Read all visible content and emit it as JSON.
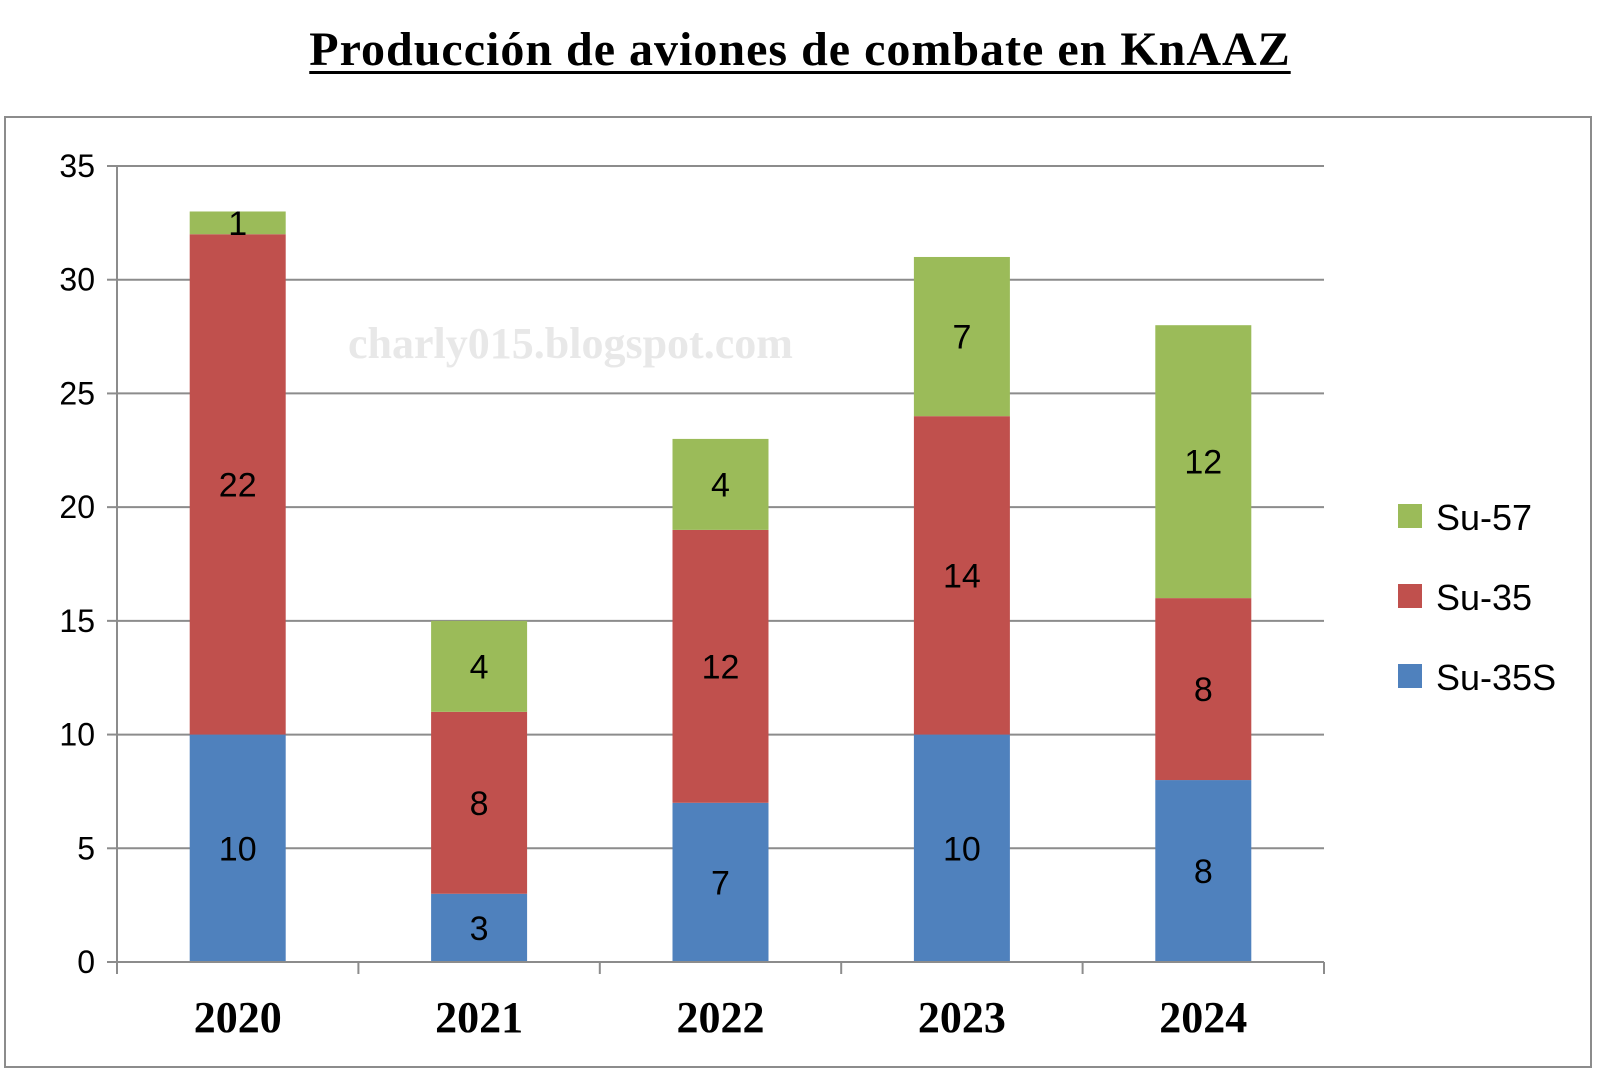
{
  "chart_data": {
    "type": "bar",
    "stacked": true,
    "title": "Producción de aviones de combate en KnAAZ",
    "watermark": "charly015.blogspot.com",
    "categories": [
      "2020",
      "2021",
      "2022",
      "2023",
      "2024"
    ],
    "series": [
      {
        "name": "Su-35S",
        "color": "#4f81bd",
        "values": [
          10,
          3,
          7,
          10,
          8
        ]
      },
      {
        "name": "Su-35",
        "color": "#c0504d",
        "values": [
          22,
          8,
          12,
          14,
          8
        ]
      },
      {
        "name": "Su-57",
        "color": "#9bbb59",
        "values": [
          1,
          4,
          4,
          7,
          12
        ]
      }
    ],
    "legend_order": [
      "Su-57",
      "Su-35",
      "Su-35S"
    ],
    "legend_position": "right",
    "ylim": [
      0,
      35
    ],
    "yticks": [
      0,
      5,
      10,
      15,
      20,
      25,
      30,
      35
    ],
    "grid": true,
    "xlabel": "",
    "ylabel": ""
  }
}
